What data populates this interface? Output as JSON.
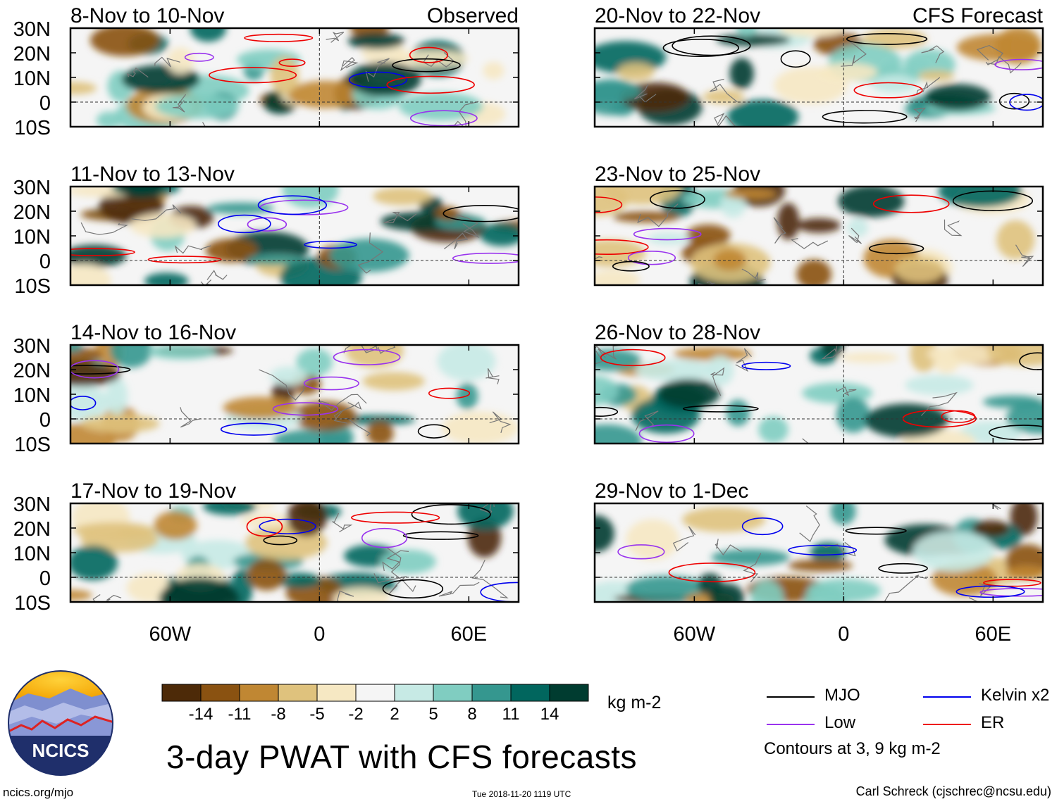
{
  "title": "3-day PWAT with CFS forecasts",
  "units_label": "kg m-2",
  "contour_note": "Contours at 3, 9 kg m-2",
  "footer": {
    "url": "ncics.org/mjo",
    "timestamp": "Tue 2018-11-20 1119 UTC",
    "credit": "Carl Schreck (cjschrec@ncsu.edu)"
  },
  "logo_text": "NCICS",
  "legend": [
    {
      "label": "MJO",
      "color": "#000000"
    },
    {
      "label": "Kelvin x2",
      "color": "#0000ee"
    },
    {
      "label": "Low",
      "color": "#9933ee"
    },
    {
      "label": "ER",
      "color": "#ee0000"
    }
  ],
  "colorbar": {
    "colors": [
      "#4d2a08",
      "#8a5211",
      "#c08733",
      "#dfc27d",
      "#f6e8c3",
      "#f5f5f5",
      "#c7eae5",
      "#80cdc1",
      "#35978f",
      "#01665e",
      "#003c30"
    ],
    "tick_labels": [
      "-14",
      "-11",
      "-8",
      "-5",
      "-2",
      "2",
      "5",
      "8",
      "11",
      "14"
    ]
  },
  "chart_data": {
    "type": "heatmap",
    "variable": "PWAT anomaly",
    "x_range_lon": [
      -100,
      80
    ],
    "y_range_lat": [
      -10,
      30
    ],
    "ytick_labels": [
      "30N",
      "20N",
      "10N",
      "0",
      "10S"
    ],
    "ytick_values": [
      30,
      20,
      10,
      0,
      -10
    ],
    "xtick_labels": [
      "60W",
      "0",
      "60E"
    ],
    "xtick_values": [
      -60,
      0,
      60
    ],
    "columns": [
      {
        "header": "Observed",
        "panels": [
          {
            "period": "8-Nov to 10-Nov"
          },
          {
            "period": "11-Nov to 13-Nov"
          },
          {
            "period": "14-Nov to 16-Nov"
          },
          {
            "period": "17-Nov to 19-Nov"
          }
        ]
      },
      {
        "header": "CFS Forecast",
        "panels": [
          {
            "period": "20-Nov to 22-Nov"
          },
          {
            "period": "23-Nov to 25-Nov"
          },
          {
            "period": "26-Nov to 28-Nov"
          },
          {
            "period": "29-Nov to 1-Dec"
          }
        ]
      }
    ]
  }
}
